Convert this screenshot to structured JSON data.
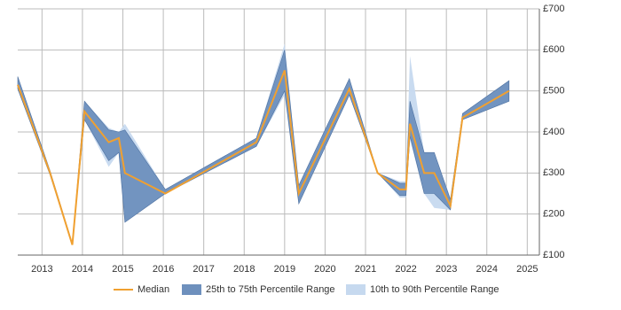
{
  "chart_data": {
    "type": "line",
    "x": [
      2012.4,
      2013.2,
      2013.75,
      2014.05,
      2014.65,
      2014.9,
      2015.05,
      2016.05,
      2018.3,
      2019.0,
      2019.35,
      2020.6,
      2021.3,
      2021.85,
      2022.0,
      2022.1,
      2022.45,
      2022.7,
      2023.1,
      2023.4,
      2024.55
    ],
    "series": [
      {
        "name": "10th to 90th Percentile Range",
        "color": "#c6d9ef",
        "low": [
          505,
          295,
          125,
          430,
          315,
          350,
          180,
          250,
          365,
          490,
          225,
          490,
          300,
          240,
          240,
          380,
          250,
          215,
          210,
          430,
          475
        ],
        "high": [
          535,
          305,
          128,
          475,
          410,
          400,
          420,
          260,
          385,
          615,
          270,
          530,
          300,
          280,
          280,
          585,
          350,
          350,
          240,
          445,
          525
        ]
      },
      {
        "name": "25th to 75th Percentile Range",
        "color": "#6e90bd",
        "low": [
          505,
          295,
          125,
          430,
          330,
          350,
          180,
          250,
          365,
          500,
          225,
          490,
          300,
          245,
          245,
          390,
          250,
          250,
          210,
          430,
          475
        ],
        "high": [
          535,
          305,
          128,
          475,
          405,
          400,
          405,
          260,
          385,
          600,
          270,
          530,
          300,
          275,
          275,
          475,
          350,
          350,
          235,
          445,
          525
        ]
      },
      {
        "name": "Median",
        "color": "#f0a030",
        "values": [
          515,
          300,
          125,
          450,
          375,
          385,
          300,
          250,
          375,
          550,
          250,
          505,
          300,
          260,
          260,
          420,
          300,
          300,
          220,
          435,
          500
        ]
      }
    ],
    "xlim": [
      2012.4,
      2025.3
    ],
    "xticks": [
      2013,
      2014,
      2015,
      2016,
      2017,
      2018,
      2019,
      2020,
      2021,
      2022,
      2023,
      2024,
      2025
    ],
    "ylim": [
      100,
      700
    ],
    "yticks": [
      {
        "value": 100,
        "label": "£100"
      },
      {
        "value": 200,
        "label": "£200"
      },
      {
        "value": 300,
        "label": "£300"
      },
      {
        "value": 400,
        "label": "£400"
      },
      {
        "value": 500,
        "label": "£500"
      },
      {
        "value": 600,
        "label": "£600"
      },
      {
        "value": 700,
        "label": "£700"
      }
    ],
    "grid": true,
    "legend": "bottom"
  }
}
